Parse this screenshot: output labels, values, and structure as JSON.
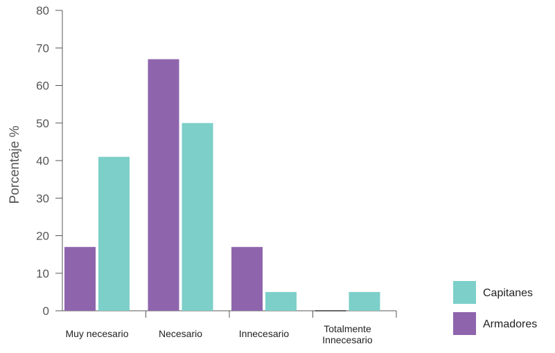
{
  "chart_data": {
    "type": "bar",
    "ylabel": "Porcentaje %",
    "xlabel": "",
    "ylim": [
      0,
      80
    ],
    "yticks": [
      0,
      10,
      20,
      30,
      40,
      50,
      60,
      70,
      80
    ],
    "categories": [
      [
        "Muy necesario"
      ],
      [
        "Necesario"
      ],
      [
        "Innecesario"
      ],
      [
        "Totalmente",
        "Innecesario"
      ]
    ],
    "series": [
      {
        "name": "Armadores",
        "color": "#8e65ad",
        "values": [
          17,
          67,
          17,
          0
        ]
      },
      {
        "name": "Capitanes",
        "color": "#7dcfc9",
        "values": [
          41,
          50,
          5,
          5
        ]
      }
    ],
    "legend": {
      "placement": "bottom-right",
      "order": [
        "Capitanes",
        "Armadores"
      ]
    },
    "grid": false
  }
}
